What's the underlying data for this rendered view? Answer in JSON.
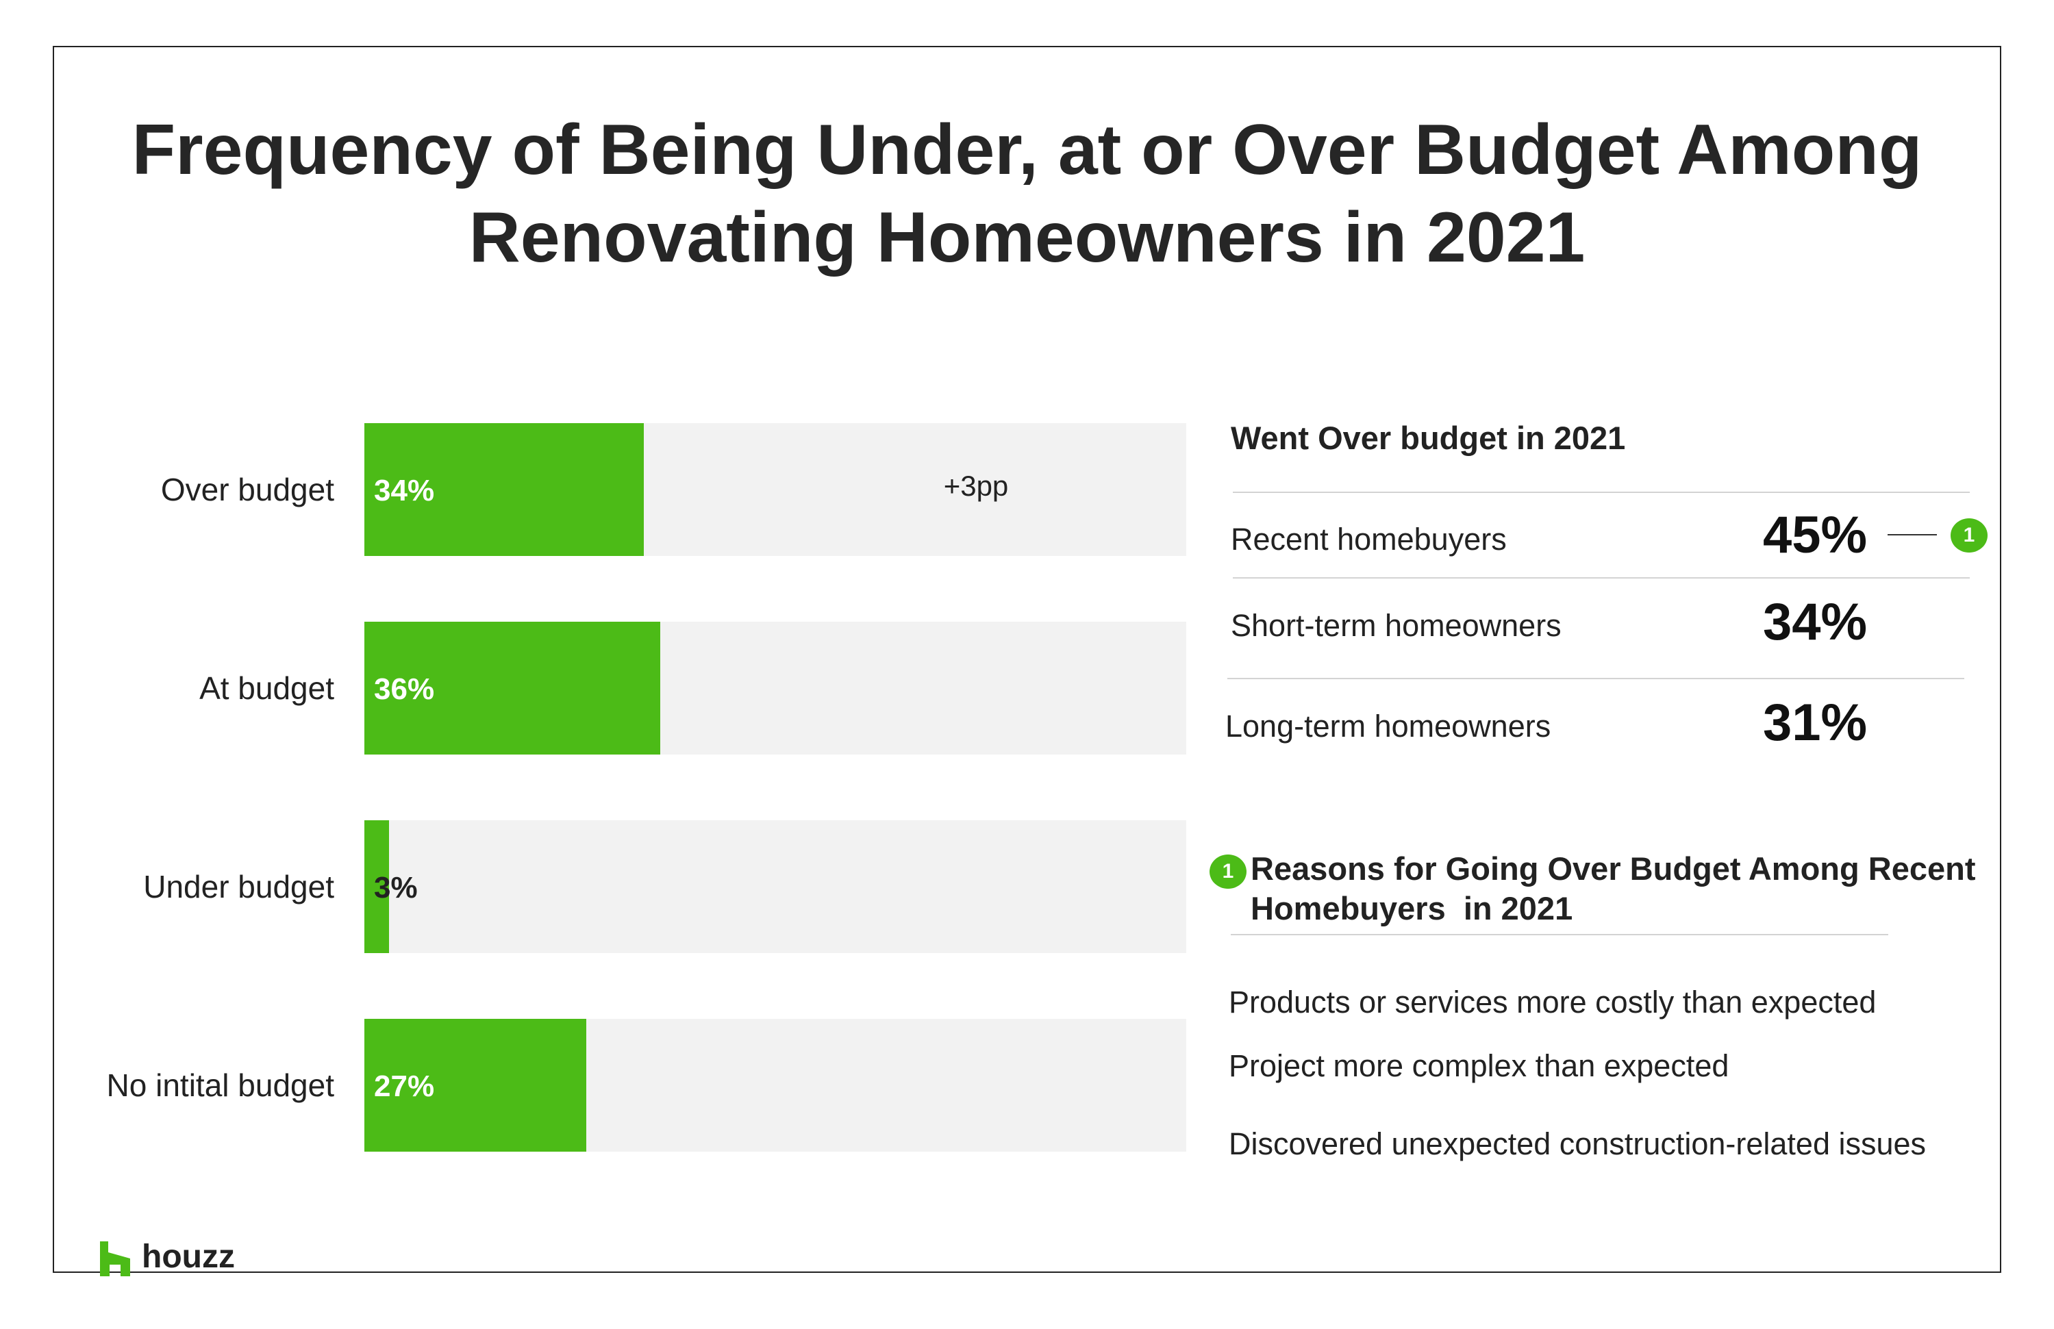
{
  "title_lines": [
    "Frequency of Being Under, at or Over Budget Among",
    "Renovating Homeowners in 2021"
  ],
  "colors": {
    "bar_fill": "#4cbb17",
    "bar_track": "#f2f2f2",
    "text_dark": "#222222",
    "badge": "#4cbb17"
  },
  "chart_data": {
    "type": "bar",
    "orientation": "horizontal",
    "categories": [
      "Over budget",
      "At budget",
      "Under budget",
      "No intital budget"
    ],
    "values": [
      34,
      36,
      3,
      27
    ],
    "value_labels": [
      "34%",
      "36%",
      "3%",
      "27%"
    ],
    "xlim": [
      0,
      100
    ],
    "annotations": [
      {
        "category": "Over budget",
        "text": "+3pp"
      }
    ],
    "title": "",
    "xlabel": "",
    "ylabel": "",
    "grid": false,
    "legend": "none"
  },
  "went_over": {
    "title": "Went Over budget in 2021",
    "rows": [
      {
        "label": "Recent homebuyers",
        "value": "45%"
      },
      {
        "label": "Short-term homeowners",
        "value": "34%"
      },
      {
        "label": "Long-term homeowners",
        "value": "31%"
      }
    ],
    "badge_icon": "footnote-1-icon",
    "badge_text": "1"
  },
  "reasons": {
    "badge_text": "1",
    "title_lines": [
      "Reasons for Going Over Budget Among Recent",
      "Homebuyers  in 2021"
    ],
    "items": [
      "Products or services more costly than expected",
      "Project more complex than expected",
      "Discovered unexpected construction-related issues"
    ]
  },
  "logo": {
    "icon": "houzz-logo-icon",
    "text": "houzz"
  }
}
